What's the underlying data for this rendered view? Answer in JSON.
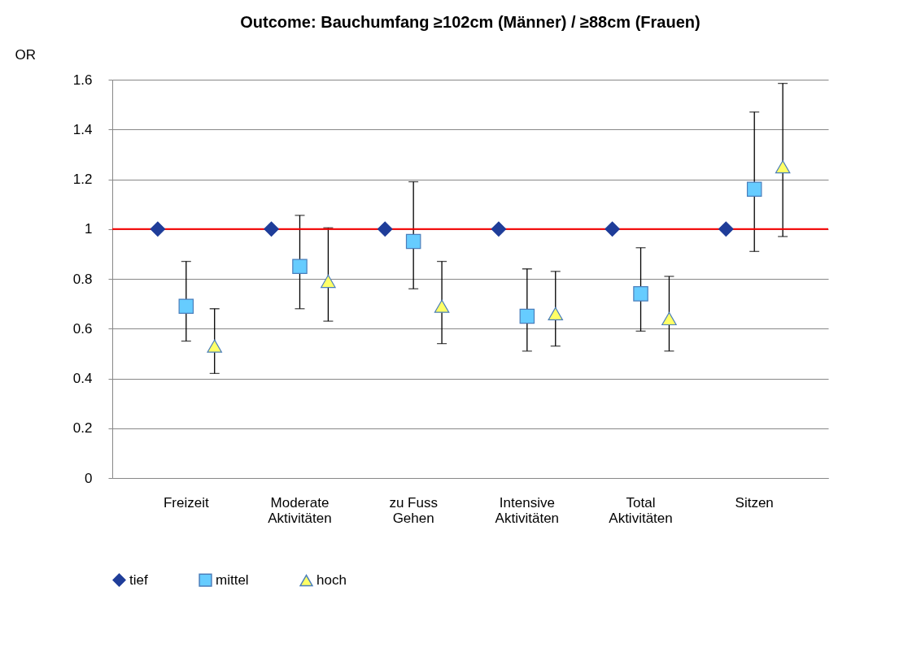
{
  "chart_data": {
    "type": "scatter",
    "title": "Outcome: Bauchumfang ≥102cm (Männer) / ≥88cm (Frauen)",
    "ylabel": "OR",
    "categories": [
      "Freizeit",
      "Moderate\nAktivitäten",
      "zu Fuss\nGehen",
      "Intensive\nAktivitäten",
      "Total\nAktivitäten",
      "Sitzen"
    ],
    "series": [
      {
        "name": "tief",
        "color": "#1f3d99",
        "marker": "diamond",
        "values": [
          1,
          1,
          1,
          1,
          1,
          1
        ]
      },
      {
        "name": "mittel",
        "color": "#66ccff",
        "marker": "square",
        "values": [
          0.69,
          0.85,
          0.95,
          0.65,
          0.74,
          1.16
        ],
        "errors": [
          [
            0.55,
            0.87
          ],
          [
            0.68,
            1.055
          ],
          [
            0.76,
            1.19
          ],
          [
            0.51,
            0.84
          ],
          [
            0.59,
            0.925
          ],
          [
            0.91,
            1.47
          ]
        ]
      },
      {
        "name": "hoch",
        "color": "#ffff66",
        "marker": "triangle",
        "values": [
          0.53,
          0.79,
          0.69,
          0.66,
          0.64,
          1.25
        ],
        "errors": [
          [
            0.42,
            0.68
          ],
          [
            0.63,
            1.005
          ],
          [
            0.54,
            0.87
          ],
          [
            0.53,
            0.83
          ],
          [
            0.51,
            0.81
          ],
          [
            0.97,
            1.585
          ]
        ]
      }
    ],
    "ylim": [
      0,
      1.6
    ],
    "yticks": [
      0,
      0.2,
      0.4,
      0.6,
      0.8,
      1,
      1.2,
      1.4,
      1.6
    ],
    "grid": "y",
    "legend": "bottom",
    "ref_lines": [
      {
        "axis": "y",
        "value": 1,
        "color": "#ff0000"
      }
    ]
  }
}
